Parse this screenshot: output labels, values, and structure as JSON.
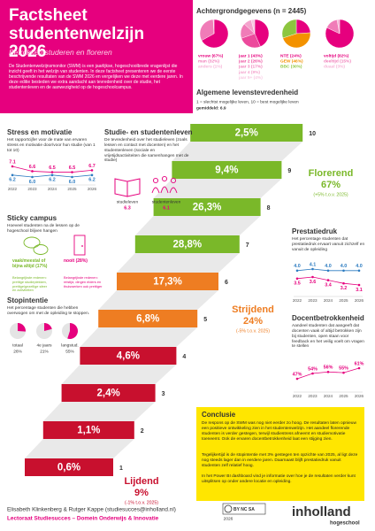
{
  "header": {
    "title": "Factsheet studentenwelzijn 2026",
    "subtitle": "Betrokken studeren en floreren",
    "intro": "De Studentenwelzijnsmonitor (SWM) is een jaarlijkse, hogeschoolbrede vragenlijst die inzicht geeft in het welzijn van studenten. In deze factsheet presenteren we de eerste beschrijvende resultaten van de SWM 2026 en vergelijken we deze met eerdere jaren. In deze editie besteden we extra aandacht aan tevredenheid over de studie, het studentenleven en de aanwezigheid op de hogeschoolcampus."
  },
  "background": {
    "title": "Achtergrondgegevens (n = 2445)",
    "pies": [
      {
        "slices": [
          {
            "label": "vrouw (67%)",
            "value": 67,
            "color": "#e6007e"
          },
          {
            "label": "man (32%)",
            "value": 32,
            "color": "#f07cb8"
          },
          {
            "label": "anders (1%)",
            "value": 1,
            "color": "#f6b3d6"
          }
        ]
      },
      {
        "slices": [
          {
            "label": "jaar 1 (43%)",
            "value": 43,
            "color": "#e6007e"
          },
          {
            "label": "jaar 2 (26%)",
            "value": 26,
            "color": "#ec4a9c"
          },
          {
            "label": "jaar 3 (17%)",
            "value": 17,
            "color": "#f07cb8"
          },
          {
            "label": "jaar 4 (9%)",
            "value": 9,
            "color": "#f4a3cd"
          },
          {
            "label": "jaar 5+ (4%)",
            "value": 4,
            "color": "#f8c7e1"
          }
        ]
      },
      {
        "slices": [
          {
            "label": "NTE (24%)",
            "value": 24,
            "color": "#e6007e"
          },
          {
            "label": "GEW (46%)",
            "value": 46,
            "color": "#f39200"
          },
          {
            "label": "BBC (30%)",
            "value": 30,
            "color": "#8dc63f"
          }
        ]
      },
      {
        "slices": [
          {
            "label": "voltijd (82%)",
            "value": 82,
            "color": "#e6007e"
          },
          {
            "label": "deeltijd (15%)",
            "value": 15,
            "color": "#f07cb8"
          },
          {
            "label": "duaal (3%)",
            "value": 3,
            "color": "#f6b3d6"
          }
        ]
      }
    ]
  },
  "life_satisfaction": {
    "title": "Algemene levenstevredenheid",
    "scale": "1 = slechtst mogelijke leven, 10 = best mogelijke leven",
    "mean": "gemiddeld: 6.9",
    "levels": [
      {
        "level": 1,
        "value": 0.6,
        "value_label": "0,6%",
        "color": "#c8102e"
      },
      {
        "level": 2,
        "value": 1.1,
        "value_label": "1,1%",
        "color": "#c8102e"
      },
      {
        "level": 3,
        "value": 2.4,
        "value_label": "2,4%",
        "color": "#c8102e"
      },
      {
        "level": 4,
        "value": 4.6,
        "value_label": "4,6%",
        "color": "#c8102e"
      },
      {
        "level": 5,
        "value": 6.8,
        "value_label": "6,8%",
        "color": "#ee7d22"
      },
      {
        "level": 6,
        "value": 17.3,
        "value_label": "17,3%",
        "color": "#ee7d22"
      },
      {
        "level": 7,
        "value": 28.8,
        "value_label": "28,8%",
        "color": "#7ab829"
      },
      {
        "level": 8,
        "value": 26.3,
        "value_label": "26,3%",
        "color": "#7ab829"
      },
      {
        "level": 9,
        "value": 9.4,
        "value_label": "9,4%",
        "color": "#7ab829"
      },
      {
        "level": 10,
        "value": 2.5,
        "value_label": "2,5%",
        "color": "#7ab829"
      }
    ],
    "groups": [
      {
        "name": "Florerend",
        "value": 67,
        "value_label": "67%",
        "change": "(+5% t.o.v. 2025)",
        "color": "#7ab829"
      },
      {
        "name": "Strijdend",
        "value": 24,
        "value_label": "24%",
        "change": "(-5% t.o.v. 2025)",
        "color": "#ee7d22"
      },
      {
        "name": "Lijdend",
        "value": 9,
        "value_label": "9%",
        "change": "(-1% t.o.v. 2025)",
        "color": "#c8102e"
      }
    ]
  },
  "stress": {
    "title": "Stress en motivatie",
    "text": "Het rapportcijfer voor de mate van ervaren stress en motivatie door/voor hun studie (van 1 tot 10)",
    "years": [
      "2022",
      "2023",
      "2024",
      "2025",
      "2026"
    ],
    "series": [
      {
        "color": "#e6007e",
        "values": [
          7.1,
          6.6,
          6.5,
          6.5,
          6.7
        ],
        "value_labels": [
          "7.1",
          "6.6",
          "6.5",
          "6.5",
          "6.7"
        ]
      },
      {
        "color": "#2b7bc0",
        "values": [
          6.2,
          6.0,
          6.2,
          6.0,
          6.2
        ],
        "value_labels": [
          "6.2",
          "6.0",
          "6.2",
          "6.0",
          "6.2"
        ]
      }
    ]
  },
  "study_life": {
    "title": "Studie- en studentenleven",
    "text": "De tevredenheid over het studieleven (zoals lessen en contact met docenten) en het studentenleven (sociale en vrijetijdsactiviteiten die samenhangen met de studie)",
    "items": [
      {
        "label": "studieleven",
        "value": 6.3,
        "color": "#e6007e"
      },
      {
        "label": "studentenleven",
        "value": 6.1,
        "color": "#e6007e"
      }
    ]
  },
  "sticky_campus": {
    "title": "Sticky campus",
    "text": "Hoeveel studenten na de lessen op de hogeschool blijven hangen",
    "options": [
      {
        "label": "vaak/meestal of bijna altijd (17%)",
        "reasons": "Belangrijkste redenen: prettige studieplekken, prettige/gezellige sfeer en activiteiten",
        "color": "#7ab829"
      },
      {
        "label": "nooit (28%)",
        "reasons": "Belangrijkste redenen: reistijd, dingen elders en thuiswerken ook prettiger",
        "color": "#e6007e"
      }
    ]
  },
  "stop_intention": {
    "title": "Stopintentie",
    "text": "Het percentage studenten die hebben overwogen om met de opleiding te stoppen.",
    "categories": [
      "totaal",
      "4e jaars",
      "langstud."
    ],
    "values": [
      26,
      21,
      55
    ],
    "value_labels": [
      "26%",
      "21%",
      "55%"
    ],
    "color": "#e6007e"
  },
  "performance_pressure": {
    "title": "Prestatiedruk",
    "text": "Het percentage studenten dat prestatiedruk ervaart vanuit zichzelf en vanuit de opleiding",
    "years": [
      "2022",
      "2023",
      "2024",
      "2025",
      "2026"
    ],
    "series": [
      {
        "color": "#2b7bc0",
        "values": [
          4.0,
          4.1,
          4.0,
          4.0,
          4.0
        ],
        "value_labels": [
          "4.0",
          "4.1",
          "4.0",
          "4.0",
          "4.0"
        ]
      },
      {
        "color": "#e6007e",
        "values": [
          3.5,
          3.6,
          3.4,
          3.2,
          3.1
        ],
        "value_labels": [
          "3.5",
          "3.6",
          "3.4",
          "3.2",
          "3.1"
        ]
      }
    ]
  },
  "teacher_involvement": {
    "title": "Docentbetrokkenheid",
    "text": "Aandeel studenten dat aangeeft dat docenten vaak of altijd betrokken zijn bij studenten, open staan voor feedback en het veilig voelt om vragen te stellen",
    "years": [
      "2022",
      "2023",
      "2024",
      "2025",
      "2026"
    ],
    "series": [
      {
        "color": "#e6007e",
        "values": [
          47,
          54,
          56,
          55,
          61
        ],
        "value_labels": [
          "47%",
          "54%",
          "56%",
          "55%",
          "61%"
        ]
      }
    ]
  },
  "conclusion": {
    "title": "Conclusie",
    "paragraphs": [
      "De respons op de SWM was nog niet eerder zo hoog. De resultaten laten opnieuw een positieve ontwikkeling zien in het studentenwelzijn. Het aandeel florerende studenten is verder gestegen, terwijl studiestress afneemt en studiemotivatie toeneemt. Ook de ervaren docentbetrokkenheid laat een stijging zien.",
      "Tegelijkertijd is de stopintentie met 3% gestegen ten opzichte van 2025, al ligt deze nog steeds lager dan in eerdere jaren. Daarnaast blijft prestatiedruk vanuit studenten zelf relatief hoog.",
      "In het Power BI dashboard vind je informatie over hoe je de resultaten verder kunt uitsplitsen op onder andere locatie en opleiding."
    ]
  },
  "footer": {
    "authors": "Elisabeth Klinkenberg & Rutger Kappe (studiesucces@inholland.nl)",
    "department": "Lectoraat Studiesucces – Domein Onderwijs & Innovatie",
    "license_year": "2026",
    "license": "BY NC SA",
    "logo": "inholland",
    "logo_sub": "hogeschool"
  }
}
